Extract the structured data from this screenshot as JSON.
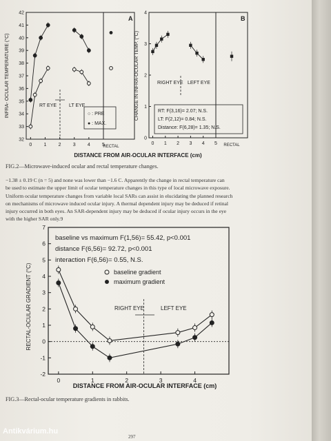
{
  "fig2": {
    "caption": "FIG.2—Microwave-induced ocular and rectal temperature changes.",
    "left": {
      "ylabel": "INFRA- OCULAR TEMPERATURE (°C)",
      "panel_label": "A",
      "y_ticks": [
        "32",
        "33",
        "34",
        "35",
        "36",
        "37",
        "38",
        "39",
        "40",
        "41",
        "42"
      ],
      "x_ticks": [
        "0",
        "1",
        "2",
        "3",
        "4",
        "5"
      ],
      "rectal_label": "RECTAL",
      "rt_eye": "RT EYE",
      "lt_eye": "LT EYE",
      "legend_pre": "○ : PRE",
      "legend_max": "● : MAX."
    },
    "right": {
      "ylabel": "CHANGE IN INFRA-OCULAR TEMP. (°C)",
      "panel_label": "B",
      "y_ticks": [
        "0",
        "1",
        "2",
        "3",
        "4"
      ],
      "x_ticks": [
        "0",
        "1",
        "2",
        "3",
        "4",
        "5"
      ],
      "rectal_label": "RECTAL",
      "right_eye": "RIGHT EYE",
      "left_eye": "LEFT EYE",
      "stat_rt": "RT: F(3,16)= 2.07; N.S.",
      "stat_lt": "LT: F(2,12)= 0.84; N.S.",
      "stat_dist": "Distance: F(6,28)= 1.35; N.S."
    },
    "xlabel": "DISTANCE FROM AIR-OCULAR INTERFACE (cm)"
  },
  "body_text": [
    "−1.38 ± 0.19 C (n = 5) and none was lower than −1.6 C. Apparently the change in rectal temperature can",
    "be used to estimate the upper limit of ocular temperature changes in this type of local microwave exposure.",
    "Uniform ocular temperature changes from variable local SARs can assist in elucidating the planned research",
    "on mechanisms of microwave induced ocular injury. A thermal dependent injury may be deduced if retinal",
    "injury occurred in both eyes. An SAR-dependent injury may be deduced if ocular injury occurs in the eye",
    "with the higher SAR only.9"
  ],
  "fig3": {
    "caption": "FIG.3—Rectal-ocular temperature gradients in rabbits.",
    "ylabel": "RECTAL-OCULAR GRADIENT (°C)",
    "xlabel": "DISTANCE FROM AIR-OCULAR INTERFACE (cm)",
    "stat1": "baseline vs maximum F(1,56)= 55.42, p<0.001",
    "stat2": "distance F(6,56)= 92.72, p<0.001",
    "stat3": "interaction F(6,56)= 0.55, N.S.",
    "legend_baseline": "baseline gradient",
    "legend_max": "maximum gradient",
    "right_eye": "RIGHT EYE",
    "left_eye": "LEFT EYE"
  },
  "watermark": "Antikvárium.hu",
  "page_number": "297",
  "chart_data": [
    {
      "type": "scatter",
      "ylim": [
        32,
        42
      ],
      "xlim": [
        -0.3,
        5
      ],
      "series": [
        {
          "x": [
            0,
            0.3,
            0.7,
            1.2
          ],
          "y": [
            35.1,
            38.6,
            40.0,
            41.0
          ],
          "marker": "filled"
        },
        {
          "x": [
            3.0,
            3.5,
            4.0
          ],
          "y": [
            40.6,
            40.1,
            39.0
          ],
          "marker": "filled"
        },
        {
          "x": [
            0,
            0.3,
            0.7,
            1.2
          ],
          "y": [
            33.0,
            35.5,
            36.6,
            37.6
          ],
          "marker": "open"
        },
        {
          "x": [
            3.0,
            3.5,
            4.0
          ],
          "y": [
            37.5,
            37.3,
            36.4
          ],
          "marker": "open"
        }
      ],
      "rectal": {
        "max": 40.4,
        "pre": 37.6
      }
    },
    {
      "type": "scatter",
      "ylim": [
        0,
        4
      ],
      "xlim": [
        -0.3,
        5
      ],
      "series": [
        {
          "x": [
            0,
            0.3,
            0.7,
            1.2
          ],
          "y": [
            2.75,
            2.95,
            3.15,
            3.3
          ],
          "marker": "filled"
        },
        {
          "x": [
            3.0,
            3.5,
            4.0
          ],
          "y": [
            2.95,
            2.7,
            2.5
          ],
          "marker": "filled"
        }
      ],
      "rectal": {
        "value": 2.6
      }
    },
    {
      "type": "line",
      "ylim": [
        -2,
        7
      ],
      "xlim": [
        -0.3,
        5
      ],
      "series": [
        {
          "name": "baseline gradient",
          "x": [
            0,
            0.5,
            1.0,
            1.5,
            3.5,
            4.0,
            4.5
          ],
          "y": [
            4.4,
            2.0,
            0.9,
            0.05,
            0.55,
            0.85,
            1.65
          ],
          "marker": "open"
        },
        {
          "name": "maximum gradient",
          "x": [
            0,
            0.5,
            1.0,
            1.5,
            3.5,
            4.0,
            4.5
          ],
          "y": [
            3.6,
            0.8,
            -0.3,
            -1.0,
            -0.15,
            0.25,
            1.15
          ],
          "marker": "filled"
        }
      ],
      "x_ticks": [
        0,
        1,
        2,
        3,
        4
      ],
      "y_ticks": [
        -2,
        -1,
        0,
        1,
        2,
        3,
        4,
        5,
        6,
        7
      ]
    }
  ]
}
